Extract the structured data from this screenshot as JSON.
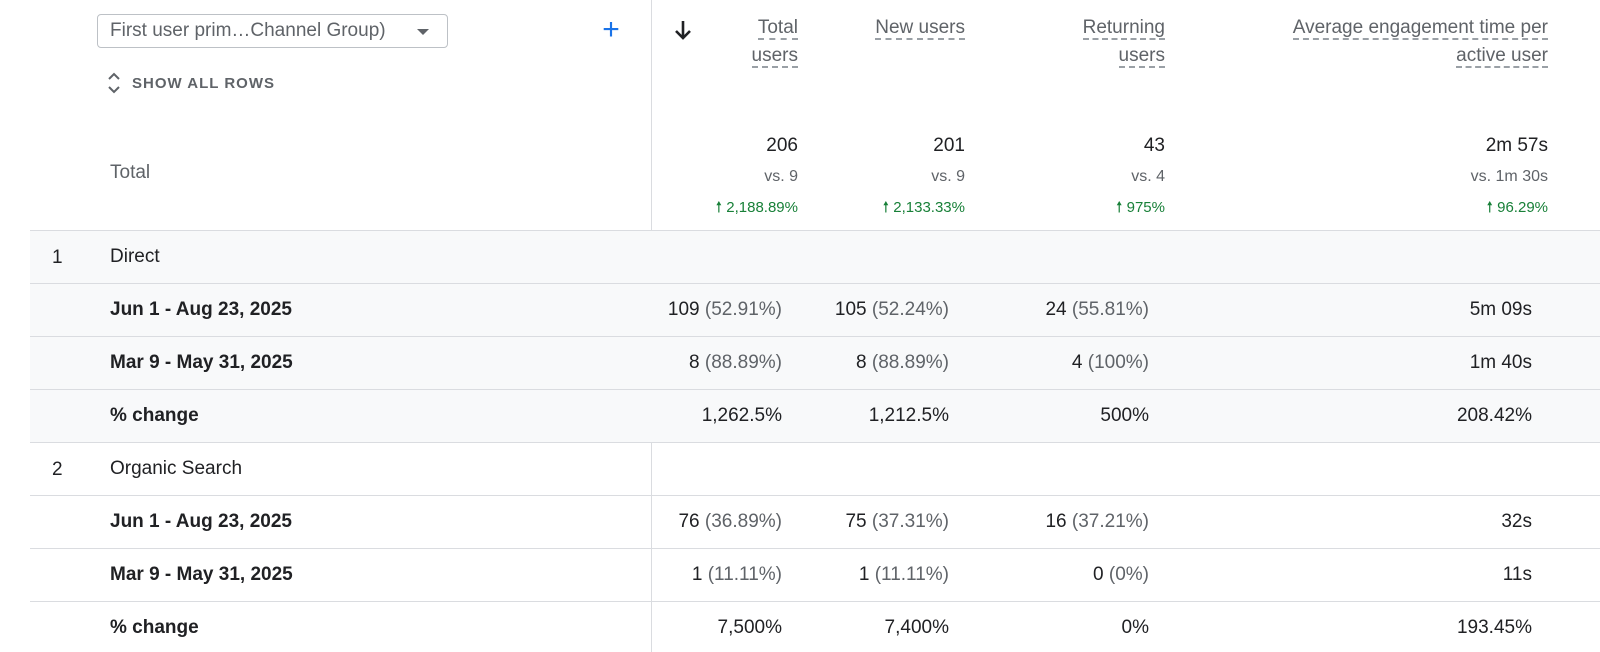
{
  "header": {
    "dimension_select": "First user prim…Channel Group)",
    "add_label": "+",
    "show_all_rows": "SHOW ALL ROWS",
    "columns": [
      {
        "line1": "Total",
        "line2": "users"
      },
      {
        "line1": "New users",
        "line2": ""
      },
      {
        "line1": "Returning",
        "line2": "users"
      },
      {
        "line1": "Average engagement time per",
        "line2": "active user"
      }
    ]
  },
  "total": {
    "label": "Total",
    "values": [
      "206",
      "201",
      "43",
      "2m 57s"
    ],
    "vs": [
      "vs. 9",
      "vs. 9",
      "vs. 4",
      "vs. 1m 30s"
    ],
    "changes": [
      "2,188.89%",
      "2,133.33%",
      "975%",
      "96.29%"
    ]
  },
  "groups": [
    {
      "num": "1",
      "channel": "Direct",
      "rows": [
        {
          "label": "Jun 1 - Aug 23, 2025",
          "cells": [
            [
              "109",
              "(52.91%)"
            ],
            [
              "105",
              "(52.24%)"
            ],
            [
              "24",
              "(55.81%)"
            ],
            [
              "5m 09s",
              ""
            ]
          ]
        },
        {
          "label": "Mar 9 - May 31, 2025",
          "cells": [
            [
              "8",
              "(88.89%)"
            ],
            [
              "8",
              "(88.89%)"
            ],
            [
              "4",
              "(100%)"
            ],
            [
              "1m 40s",
              ""
            ]
          ]
        },
        {
          "label": "% change",
          "cells": [
            [
              "1,262.5%",
              ""
            ],
            [
              "1,212.5%",
              ""
            ],
            [
              "500%",
              ""
            ],
            [
              "208.42%",
              ""
            ]
          ]
        }
      ]
    },
    {
      "num": "2",
      "channel": "Organic Search",
      "rows": [
        {
          "label": "Jun 1 - Aug 23, 2025",
          "cells": [
            [
              "76",
              "(36.89%)"
            ],
            [
              "75",
              "(37.31%)"
            ],
            [
              "16",
              "(37.21%)"
            ],
            [
              "32s",
              ""
            ]
          ]
        },
        {
          "label": "Mar 9 - May 31, 2025",
          "cells": [
            [
              "1",
              "(11.11%)"
            ],
            [
              "1",
              "(11.11%)"
            ],
            [
              "0",
              "(0%)"
            ],
            [
              "11s",
              ""
            ]
          ]
        },
        {
          "label": "% change",
          "cells": [
            [
              "7,500%",
              ""
            ],
            [
              "7,400%",
              ""
            ],
            [
              "0%",
              ""
            ],
            [
              "193.45%",
              ""
            ]
          ]
        }
      ]
    }
  ],
  "colors": {
    "accent": "#1a73e8",
    "positive": "#188038",
    "shade": "#f8f9fa",
    "divider": "#dadce0"
  }
}
